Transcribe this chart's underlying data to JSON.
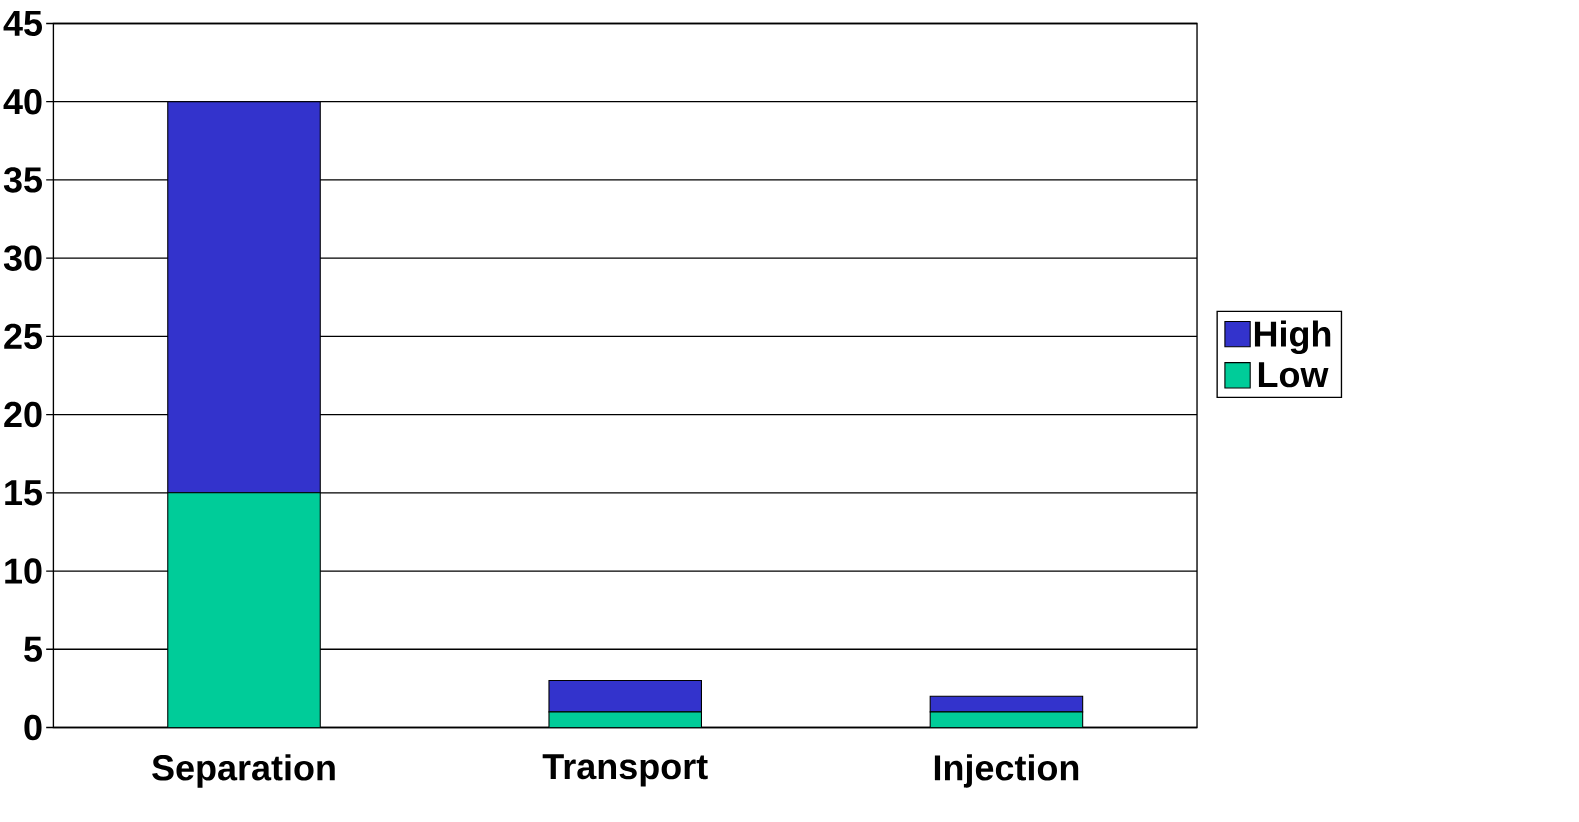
{
  "chart_data": {
    "type": "bar",
    "stacked": true,
    "categories": [
      "Separation",
      "Transport",
      "Injection"
    ],
    "series": [
      {
        "name": "Low",
        "color": "#00cc99",
        "values": [
          15,
          1,
          1
        ]
      },
      {
        "name": "High",
        "color": "#3333cc",
        "values": [
          25,
          2,
          1
        ]
      }
    ],
    "ylim": [
      0,
      45
    ],
    "yticks": [
      0,
      5,
      10,
      15,
      20,
      25,
      30,
      35,
      40,
      45
    ],
    "grid": "y",
    "legend": "right"
  }
}
